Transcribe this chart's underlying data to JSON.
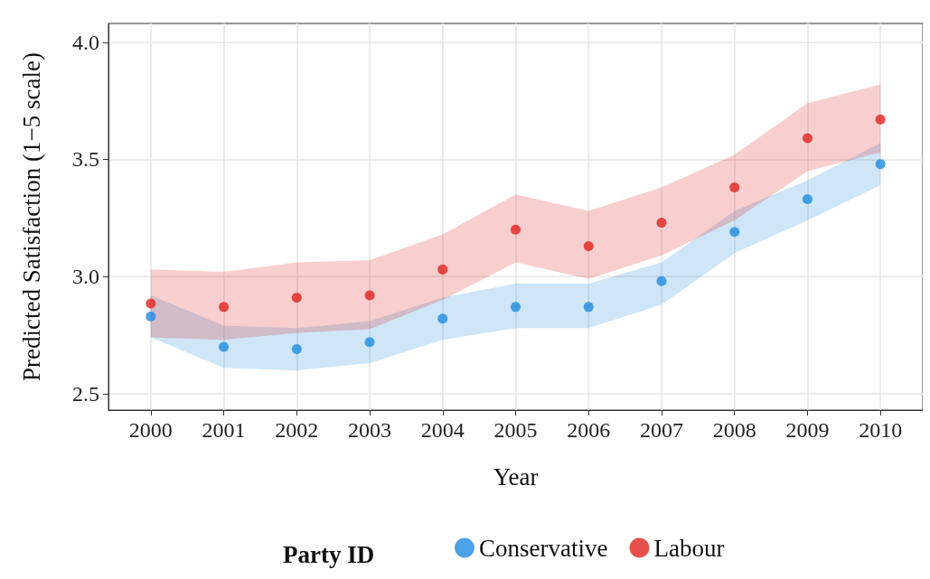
{
  "chart_data": {
    "type": "scatter",
    "xlabel": "Year",
    "ylabel": "Predicted Satisfaction (1−5 scale)",
    "legend_title": "Party ID",
    "legend": "bottom",
    "grid": true,
    "marker": "circle",
    "x": [
      2000,
      2001,
      2002,
      2003,
      2004,
      2005,
      2006,
      2007,
      2008,
      2009,
      2010
    ],
    "xlim": [
      1999.42,
      2010.58
    ],
    "xticks": [
      2000,
      2001,
      2002,
      2003,
      2004,
      2005,
      2006,
      2007,
      2008,
      2009,
      2010
    ],
    "ylim": [
      2.43,
      4.08
    ],
    "yticks": [
      {
        "value": 2.5,
        "label": "2.5"
      },
      {
        "value": 3,
        "label": "3.0"
      },
      {
        "value": 3.5,
        "label": "3.5"
      },
      {
        "value": 4,
        "label": "4.0"
      }
    ],
    "series": [
      {
        "name": "Conservative",
        "color": "#1f8be0",
        "values": [
          2.83,
          2.7,
          2.69,
          2.72,
          2.82,
          2.87,
          2.87,
          2.98,
          3.19,
          3.33,
          3.48
        ],
        "lower": [
          2.74,
          2.61,
          2.6,
          2.63,
          2.73,
          2.78,
          2.78,
          2.88,
          3.1,
          3.24,
          3.39
        ],
        "upper": [
          2.92,
          2.79,
          2.78,
          2.81,
          2.91,
          2.97,
          2.97,
          3.06,
          3.28,
          3.41,
          3.57
        ]
      },
      {
        "name": "Labour",
        "color": "#e0231f",
        "values": [
          2.885,
          2.87,
          2.91,
          2.92,
          3.03,
          3.2,
          3.13,
          3.23,
          3.38,
          3.59,
          3.67
        ],
        "lower": [
          2.74,
          2.73,
          2.76,
          2.775,
          2.9,
          3.06,
          2.99,
          3.09,
          3.24,
          3.45,
          3.53
        ],
        "upper": [
          3.03,
          3.02,
          3.06,
          3.07,
          3.18,
          3.35,
          3.28,
          3.38,
          3.52,
          3.74,
          3.82
        ]
      }
    ]
  }
}
